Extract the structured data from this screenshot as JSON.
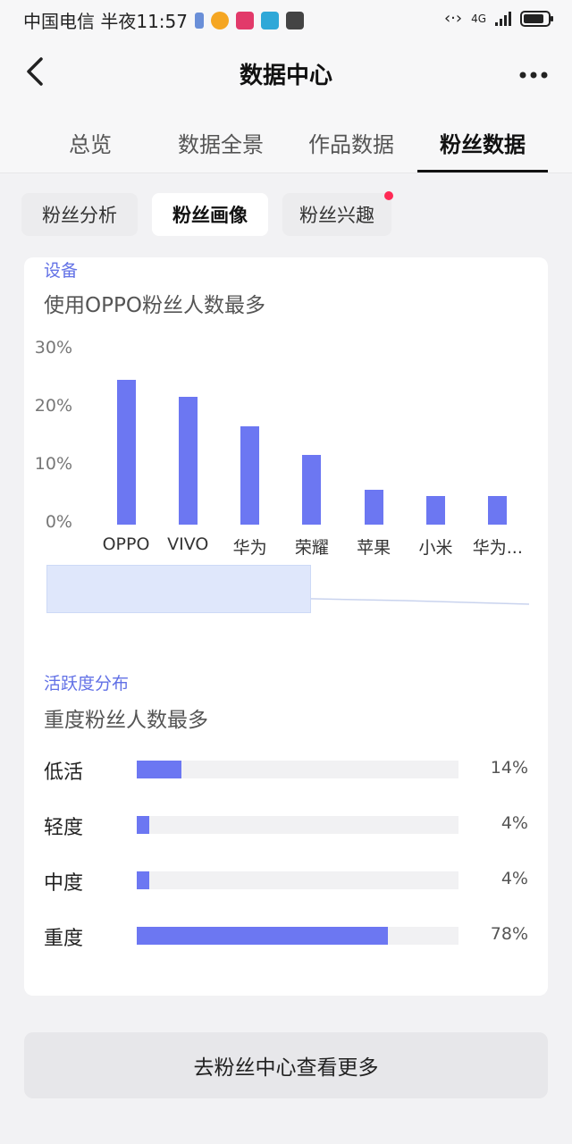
{
  "status_bar": {
    "carrier_time": "中国电信 半夜11:57",
    "network": "4G",
    "icons": [
      "battery-saver-icon",
      "weibo-icon",
      "app-icon",
      "reader-icon",
      "huawei-app-icon"
    ]
  },
  "nav": {
    "title": "数据中心",
    "back_icon": "chevron-left-icon",
    "more_icon": "more-dots-icon"
  },
  "tabs": [
    {
      "label": "总览"
    },
    {
      "label": "数据全景"
    },
    {
      "label": "作品数据"
    },
    {
      "label": "粉丝数据",
      "active": true
    }
  ],
  "subtabs": [
    {
      "label": "粉丝分析"
    },
    {
      "label": "粉丝画像",
      "active": true
    },
    {
      "label": "粉丝兴趣",
      "badge": true
    }
  ],
  "device_section": {
    "label": "设备",
    "title": "使用OPPO粉丝人数最多"
  },
  "chart_data": {
    "type": "bar",
    "categories": [
      "OPPO",
      "VIVO",
      "华为",
      "荣耀",
      "苹果",
      "小米",
      "华为..."
    ],
    "values": [
      25,
      22,
      17,
      12,
      6,
      5,
      5
    ],
    "y_ticks": [
      "30%",
      "20%",
      "10%",
      "0%"
    ],
    "ylim": [
      0,
      30
    ],
    "bar_color": "#6c77f2",
    "grid": false
  },
  "activity_section": {
    "label": "活跃度分布",
    "title": "重度粉丝人数最多",
    "rows": [
      {
        "label": "低活",
        "value": 14,
        "pct": "14%"
      },
      {
        "label": "轻度",
        "value": 4,
        "pct": "4%"
      },
      {
        "label": "中度",
        "value": 4,
        "pct": "4%"
      },
      {
        "label": "重度",
        "value": 78,
        "pct": "78%"
      }
    ]
  },
  "more_button": {
    "label": "去粉丝中心查看更多"
  },
  "colors": {
    "accent": "#6c77f2",
    "label_blue": "#6271e6",
    "badge_red": "#ff2a55"
  }
}
